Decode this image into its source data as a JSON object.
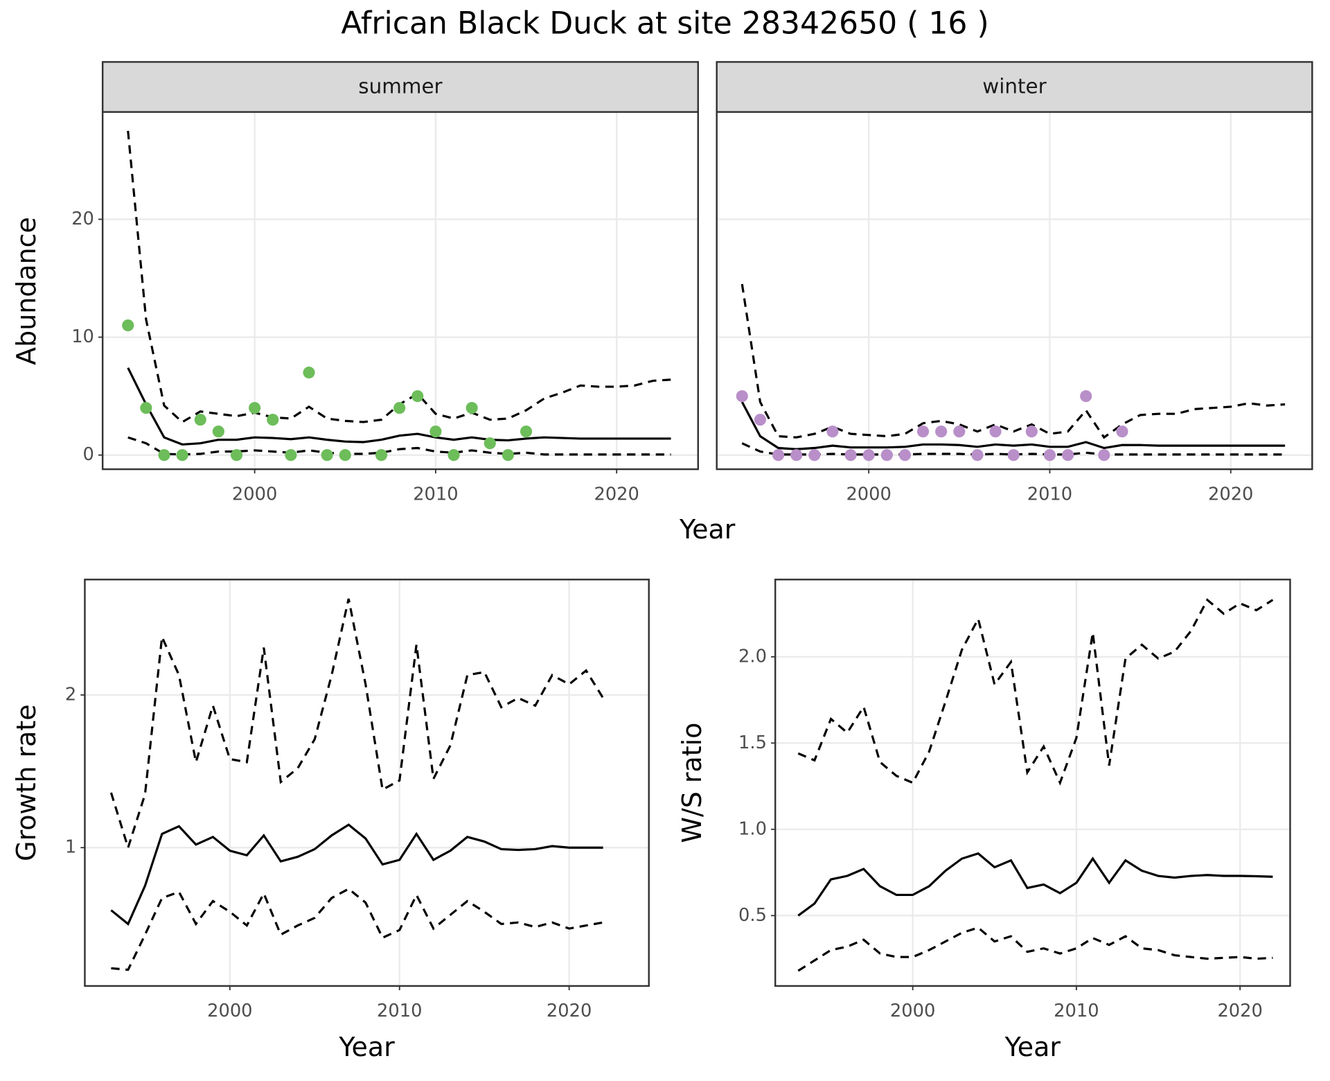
{
  "title": "African Black Duck at site 28342650 ( 16 )",
  "chart_data": [
    {
      "type": "line",
      "xlabel": "Year",
      "ylabel": "Abundance",
      "grid": true,
      "xlim": [
        1991.6,
        2024.5
      ],
      "xticks": [
        2000,
        2010,
        2020
      ],
      "ylim": [
        -1.2,
        29.1
      ],
      "yticks": [
        0,
        10,
        20
      ],
      "x": [
        1993,
        1994,
        1995,
        1996,
        1997,
        1998,
        1999,
        2000,
        2001,
        2002,
        2003,
        2004,
        2005,
        2006,
        2007,
        2008,
        2009,
        2010,
        2011,
        2012,
        2013,
        2014,
        2015,
        2016,
        2017,
        2018,
        2019,
        2020,
        2021,
        2022,
        2023
      ],
      "facets": [
        {
          "label": "summer",
          "series": [
            {
              "style": "dashed",
              "color": "#000000",
              "values": [
                27.5,
                11.5,
                4.2,
                2.8,
                3.7,
                3.5,
                3.3,
                3.6,
                3.2,
                3.1,
                4.1,
                3.1,
                2.9,
                2.8,
                3.0,
                4.3,
                5.2,
                3.5,
                3.1,
                3.6,
                3.0,
                3.1,
                3.8,
                4.8,
                5.3,
                5.9,
                5.8,
                5.8,
                5.9,
                6.3,
                6.4
              ]
            },
            {
              "style": "solid",
              "color": "#000000",
              "values": [
                7.4,
                4.3,
                1.5,
                0.9,
                1.0,
                1.3,
                1.3,
                1.5,
                1.45,
                1.35,
                1.5,
                1.3,
                1.15,
                1.1,
                1.3,
                1.65,
                1.8,
                1.5,
                1.3,
                1.5,
                1.3,
                1.25,
                1.4,
                1.5,
                1.45,
                1.4,
                1.4,
                1.4,
                1.4,
                1.4,
                1.4
              ]
            },
            {
              "style": "dashed",
              "color": "#000000",
              "values": [
                1.5,
                1.0,
                0.1,
                0.05,
                0.1,
                0.3,
                0.3,
                0.4,
                0.3,
                0.2,
                0.4,
                0.2,
                0.1,
                0.1,
                0.2,
                0.5,
                0.6,
                0.3,
                0.2,
                0.4,
                0.2,
                0.1,
                0.2,
                0.05,
                0.05,
                0.05,
                0.05,
                0.05,
                0.05,
                0.05,
                0.05
              ]
            },
            {
              "style": "points",
              "color": "#6dbd5a",
              "values": [
                11,
                4,
                0,
                0,
                3,
                2,
                0,
                4,
                3,
                0,
                7,
                0,
                0,
                null,
                0,
                4,
                5,
                2,
                0,
                4,
                1,
                0,
                2,
                null,
                null,
                null,
                null,
                null,
                null,
                null,
                null
              ]
            }
          ]
        },
        {
          "label": "winter",
          "series": [
            {
              "style": "dashed",
              "color": "#000000",
              "values": [
                14.5,
                4.5,
                1.6,
                1.5,
                1.8,
                2.4,
                1.8,
                1.7,
                1.6,
                1.8,
                2.7,
                2.9,
                2.6,
                2.0,
                2.6,
                2.0,
                2.6,
                1.8,
                2.0,
                3.8,
                1.5,
                2.6,
                3.4,
                3.5,
                3.5,
                3.9,
                4.0,
                4.1,
                4.4,
                4.2,
                4.3
              ]
            },
            {
              "style": "solid",
              "color": "#000000",
              "values": [
                4.5,
                1.6,
                0.6,
                0.5,
                0.6,
                0.8,
                0.65,
                0.65,
                0.65,
                0.7,
                0.9,
                0.9,
                0.85,
                0.7,
                0.9,
                0.8,
                0.9,
                0.7,
                0.7,
                1.1,
                0.6,
                0.85,
                0.85,
                0.8,
                0.8,
                0.8,
                0.8,
                0.8,
                0.8,
                0.8,
                0.8
              ]
            },
            {
              "style": "dashed",
              "color": "#000000",
              "values": [
                1.0,
                0.3,
                0.05,
                0.05,
                0.05,
                0.1,
                0.05,
                0.05,
                0.05,
                0.05,
                0.1,
                0.1,
                0.1,
                0.05,
                0.1,
                0.05,
                0.1,
                0.05,
                0.05,
                0.2,
                0.05,
                0.05,
                0.05,
                0.05,
                0.05,
                0.05,
                0.05,
                0.05,
                0.05,
                0.05,
                0.05
              ]
            },
            {
              "style": "points",
              "color": "#b98fc9",
              "values": [
                5,
                3,
                0,
                0,
                0,
                2,
                0,
                0,
                0,
                0,
                2,
                2,
                2,
                0,
                2,
                0,
                2,
                0,
                0,
                5,
                0,
                2,
                null,
                null,
                null,
                null,
                null,
                null,
                null,
                null,
                null
              ]
            }
          ]
        }
      ]
    },
    {
      "type": "line",
      "xlabel": "Year",
      "ylabel": "Growth rate",
      "grid": true,
      "xlim": [
        1991.45,
        2024.7
      ],
      "xticks": [
        2000,
        2010,
        2020
      ],
      "ylim": [
        0.094,
        2.756
      ],
      "yticks": [
        1,
        2
      ],
      "x": [
        1993,
        1994,
        1995,
        1996,
        1997,
        1998,
        1999,
        2000,
        2001,
        2002,
        2003,
        2004,
        2005,
        2006,
        2007,
        2008,
        2009,
        2010,
        2011,
        2012,
        2013,
        2014,
        2015,
        2016,
        2017,
        2018,
        2019,
        2020,
        2021,
        2022
      ],
      "series": [
        {
          "style": "dashed",
          "color": "#000000",
          "values": [
            1.36,
            1.0,
            1.35,
            2.38,
            2.13,
            1.56,
            1.93,
            1.58,
            1.56,
            2.31,
            1.43,
            1.52,
            1.71,
            2.13,
            2.63,
            2.07,
            1.38,
            1.44,
            2.33,
            1.45,
            1.67,
            2.13,
            2.15,
            1.92,
            1.98,
            1.93,
            2.13,
            2.07,
            2.16,
            1.98
          ]
        },
        {
          "style": "solid",
          "color": "#000000",
          "values": [
            0.59,
            0.5,
            0.75,
            1.09,
            1.14,
            1.02,
            1.07,
            0.98,
            0.95,
            1.08,
            0.91,
            0.94,
            0.99,
            1.08,
            1.15,
            1.06,
            0.89,
            0.92,
            1.09,
            0.92,
            0.98,
            1.07,
            1.04,
            0.99,
            0.985,
            0.99,
            1.01,
            1.0,
            1.0,
            1.0
          ]
        },
        {
          "style": "dashed",
          "color": "#000000",
          "values": [
            0.21,
            0.2,
            0.43,
            0.67,
            0.71,
            0.5,
            0.65,
            0.58,
            0.49,
            0.7,
            0.43,
            0.49,
            0.54,
            0.67,
            0.73,
            0.64,
            0.41,
            0.46,
            0.69,
            0.47,
            0.56,
            0.65,
            0.58,
            0.5,
            0.51,
            0.48,
            0.51,
            0.47,
            0.49,
            0.51
          ]
        }
      ]
    },
    {
      "type": "line",
      "xlabel": "Year",
      "ylabel": "W/S ratio",
      "grid": true,
      "xlim": [
        1991.6,
        2023.06
      ],
      "xticks": [
        2000,
        2010,
        2020
      ],
      "ylim": [
        0.092,
        2.448
      ],
      "yticks": [
        0.5,
        {
          "value": 1.0,
          "label": "1.0"
        },
        1.5,
        {
          "value": 2.0,
          "label": "2.0"
        }
      ],
      "x": [
        1993,
        1994,
        1995,
        1996,
        1997,
        1998,
        1999,
        2000,
        2001,
        2002,
        2003,
        2004,
        2005,
        2006,
        2007,
        2008,
        2009,
        2010,
        2011,
        2012,
        2013,
        2014,
        2015,
        2016,
        2017,
        2018,
        2019,
        2020,
        2021,
        2022
      ],
      "series": [
        {
          "style": "dashed",
          "color": "#000000",
          "values": [
            1.44,
            1.4,
            1.64,
            1.56,
            1.71,
            1.39,
            1.31,
            1.27,
            1.45,
            1.74,
            2.04,
            2.22,
            1.84,
            1.97,
            1.33,
            1.48,
            1.27,
            1.53,
            2.14,
            1.37,
            1.99,
            2.07,
            1.99,
            2.03,
            2.15,
            2.33,
            2.25,
            2.31,
            2.27,
            2.33
          ]
        },
        {
          "style": "solid",
          "color": "#000000",
          "values": [
            0.5,
            0.57,
            0.71,
            0.73,
            0.77,
            0.67,
            0.62,
            0.62,
            0.67,
            0.76,
            0.83,
            0.86,
            0.78,
            0.82,
            0.66,
            0.68,
            0.63,
            0.69,
            0.83,
            0.69,
            0.82,
            0.76,
            0.73,
            0.72,
            0.73,
            0.735,
            0.73,
            0.73,
            0.728,
            0.725
          ]
        },
        {
          "style": "dashed",
          "color": "#000000",
          "values": [
            0.18,
            0.24,
            0.3,
            0.32,
            0.36,
            0.28,
            0.26,
            0.26,
            0.3,
            0.35,
            0.4,
            0.43,
            0.35,
            0.38,
            0.29,
            0.31,
            0.28,
            0.31,
            0.37,
            0.33,
            0.38,
            0.31,
            0.3,
            0.27,
            0.26,
            0.25,
            0.255,
            0.26,
            0.25,
            0.255
          ]
        }
      ]
    }
  ]
}
